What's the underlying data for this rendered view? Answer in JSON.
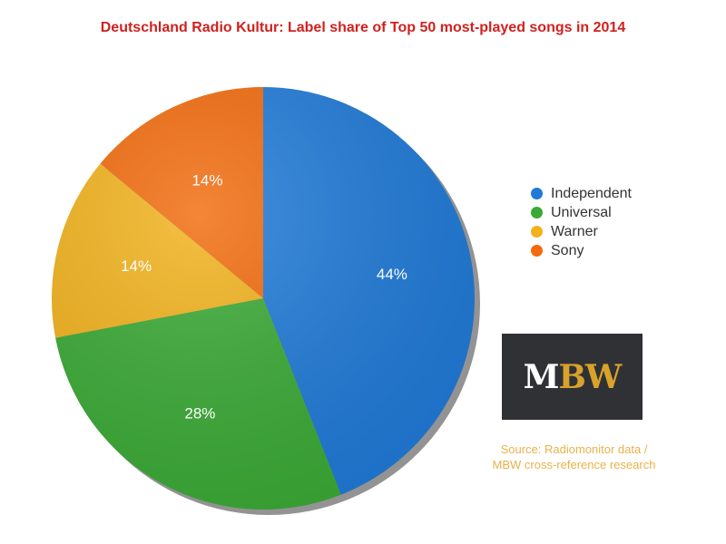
{
  "chart_data": {
    "type": "pie",
    "title": "Deutschland Radio Kultur: Label share of Top 50 most-played songs in 2014",
    "slices": [
      {
        "label": "Independent",
        "value": 44,
        "display": "44%",
        "color": "#1f7ad8"
      },
      {
        "label": "Universal",
        "value": 28,
        "display": "28%",
        "color": "#3aaa35"
      },
      {
        "label": "Warner",
        "value": 14,
        "display": "14%",
        "color": "#f2b21b"
      },
      {
        "label": "Sony",
        "value": 14,
        "display": "14%",
        "color": "#f26a0b"
      }
    ],
    "legend_position": "right"
  },
  "logo": {
    "text_m": "M",
    "text_bw": "BW"
  },
  "source": {
    "line1": "Source:  Radiomonitor data /",
    "line2": "MBW cross-reference research"
  }
}
